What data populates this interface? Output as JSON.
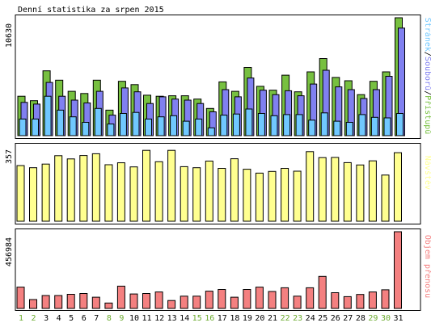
{
  "title": "Denní statistika za srpen 2015",
  "colors": {
    "access": "#77c040",
    "files": "#8080f0",
    "pages": "#70c8ff",
    "visits": "#ffff90",
    "bytes": "#f48080",
    "weekend_label": "#6cab30",
    "weekday_label": "#000000",
    "frame": "#000000"
  },
  "chart_data": [
    {
      "type": "bar",
      "panel": "traffic",
      "ymax_label": "10630",
      "ylim": [
        0,
        10630
      ],
      "categories": [
        "1",
        "2",
        "3",
        "4",
        "5",
        "6",
        "7",
        "8",
        "9",
        "10",
        "11",
        "12",
        "13",
        "14",
        "15",
        "16",
        "17",
        "18",
        "19",
        "20",
        "21",
        "22",
        "23",
        "24",
        "25",
        "26",
        "27",
        "28",
        "29",
        "30",
        "31"
      ],
      "weekend": [
        1,
        2,
        8,
        9,
        15,
        16,
        22,
        23,
        29,
        30
      ],
      "legend": {
        "pages": "Stránek",
        "files": "Souborů",
        "access": "Přístupů",
        "separator": "/"
      },
      "series": [
        {
          "name": "Přístupů",
          "key": "access",
          "values": [
            3550,
            3150,
            5850,
            5000,
            4000,
            3800,
            5000,
            2300,
            4900,
            4600,
            3650,
            3550,
            3600,
            3600,
            3300,
            2450,
            4850,
            4000,
            6150,
            4450,
            4100,
            5450,
            3950,
            5750,
            6950,
            5250,
            4950,
            3700,
            4900,
            5750,
            10630
          ]
        },
        {
          "name": "Souborů",
          "key": "files",
          "values": [
            3000,
            2850,
            4800,
            3550,
            3200,
            2950,
            4000,
            1850,
            4300,
            3950,
            2900,
            3500,
            3300,
            3200,
            2900,
            2150,
            4150,
            3500,
            5200,
            4100,
            3700,
            4050,
            3600,
            4650,
            5900,
            4400,
            4150,
            3350,
            4150,
            5350,
            9700
          ]
        },
        {
          "name": "Stránek",
          "key": "pages",
          "values": [
            1500,
            1500,
            3550,
            2300,
            1700,
            1200,
            2450,
            1050,
            2000,
            2100,
            1500,
            1700,
            1800,
            1300,
            1500,
            700,
            1850,
            1950,
            2400,
            2000,
            1800,
            1900,
            1900,
            1400,
            2050,
            1300,
            1200,
            1900,
            1650,
            1600,
            2000
          ]
        }
      ]
    },
    {
      "type": "bar",
      "panel": "visits",
      "ymax_label": "357",
      "ylim": [
        0,
        357
      ],
      "series": [
        {
          "name": "Návštěv",
          "key": "visits",
          "values": [
            259,
            249,
            266,
            305,
            290,
            306,
            314,
            263,
            272,
            253,
            330,
            277,
            330,
            254,
            249,
            280,
            246,
            291,
            242,
            224,
            232,
            246,
            233,
            324,
            296,
            297,
            273,
            262,
            281,
            215,
            319
          ]
        }
      ]
    },
    {
      "type": "bar",
      "panel": "bytes",
      "ymax_label": "456984",
      "ylim": [
        0,
        456984
      ],
      "series": [
        {
          "name": "Objem přenosu",
          "key": "bytes",
          "values": [
            127000,
            53000,
            77000,
            77000,
            84000,
            89000,
            67000,
            32000,
            133000,
            86000,
            89000,
            98000,
            47000,
            73000,
            73000,
            103000,
            113000,
            67000,
            113000,
            127000,
            101000,
            123000,
            73000,
            123000,
            191000,
            94000,
            70000,
            83000,
            98000,
            111000,
            456984
          ]
        }
      ]
    }
  ]
}
